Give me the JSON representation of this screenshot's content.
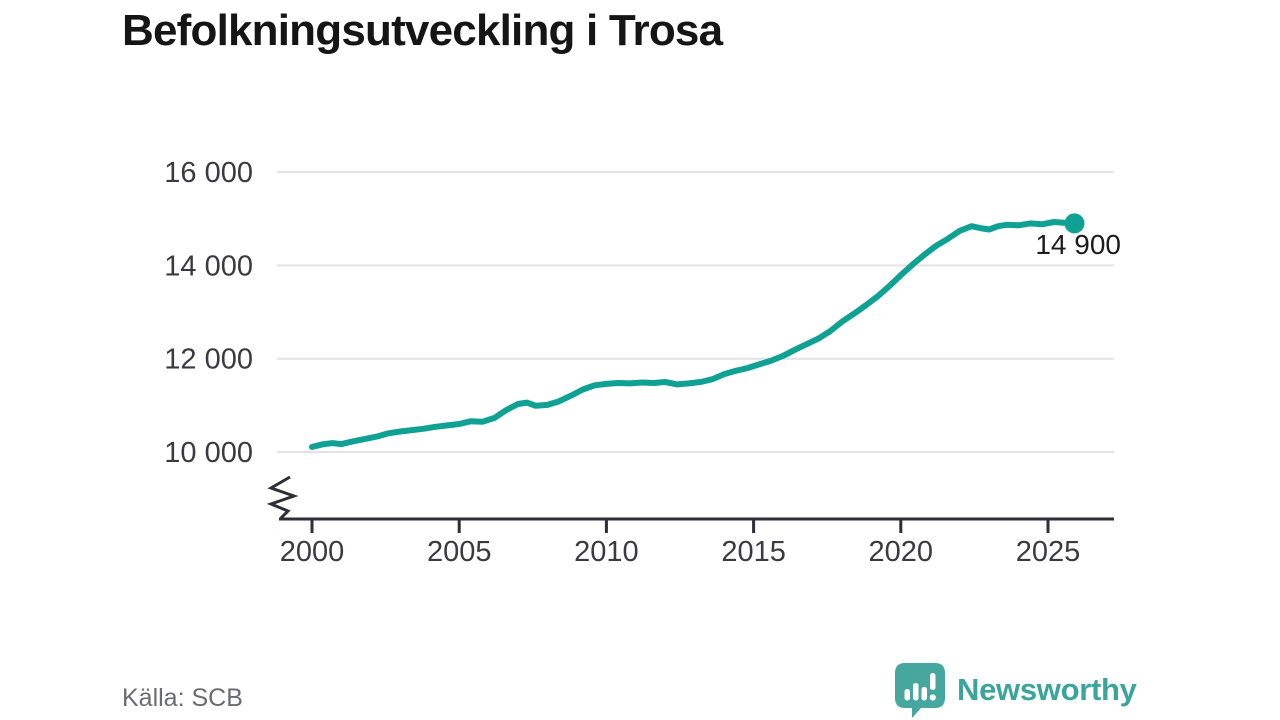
{
  "title": "Befolkningsutveckling i Trosa",
  "source": "Källa: SCB",
  "branding": {
    "logo_text": "Newsworthy",
    "logo_icon": "bar-chart-speech-bubble"
  },
  "colors": {
    "line": "#10a195",
    "grid": "#e3e3e3",
    "axis": "#2e2e36",
    "tick_label": "#3a3a42",
    "title": "#151515",
    "source": "#6b6b74",
    "logo": "#3ba49c",
    "logo_bubble": "#46a79f"
  },
  "chart_data": {
    "type": "line",
    "title": "Befolkningsutveckling i Trosa",
    "xlabel": "",
    "ylabel": "",
    "grid": "horizontal",
    "legend": "none",
    "axis_break": true,
    "xlim": [
      1999.1,
      2027.3
    ],
    "ylim": [
      10000,
      16000
    ],
    "x_ticks": [
      2000,
      2005,
      2010,
      2015,
      2020,
      2025
    ],
    "x_tick_labels": [
      "2000",
      "2005",
      "2010",
      "2015",
      "2020",
      "2025"
    ],
    "y_ticks": [
      10000,
      12000,
      14000,
      16000
    ],
    "y_tick_labels": [
      "10 000",
      "12 000",
      "14 000",
      "16 000"
    ],
    "series": [
      {
        "name": "Befolkning i Trosa",
        "x": [
          2000.0,
          2000.4,
          2000.7,
          2001.0,
          2001.4,
          2001.8,
          2002.2,
          2002.6,
          2003.0,
          2003.4,
          2003.8,
          2004.2,
          2004.6,
          2005.0,
          2005.4,
          2005.8,
          2006.2,
          2006.6,
          2007.0,
          2007.3,
          2007.6,
          2008.0,
          2008.4,
          2008.8,
          2009.2,
          2009.6,
          2010.0,
          2010.4,
          2010.8,
          2011.2,
          2011.6,
          2012.0,
          2012.4,
          2012.8,
          2013.2,
          2013.6,
          2014.0,
          2014.4,
          2014.8,
          2015.2,
          2015.6,
          2016.0,
          2016.4,
          2016.8,
          2017.2,
          2017.6,
          2018.0,
          2018.4,
          2018.8,
          2019.2,
          2019.6,
          2020.0,
          2020.4,
          2020.8,
          2021.2,
          2021.6,
          2022.0,
          2022.4,
          2022.7,
          2023.0,
          2023.3,
          2023.6,
          2024.0,
          2024.4,
          2024.8,
          2025.2,
          2025.6,
          2025.9
        ],
        "y": [
          10110,
          10170,
          10190,
          10170,
          10230,
          10280,
          10330,
          10400,
          10440,
          10470,
          10500,
          10540,
          10570,
          10600,
          10660,
          10650,
          10730,
          10900,
          11030,
          11060,
          10990,
          11010,
          11090,
          11210,
          11340,
          11430,
          11460,
          11480,
          11470,
          11490,
          11480,
          11500,
          11450,
          11470,
          11500,
          11560,
          11670,
          11740,
          11800,
          11880,
          11960,
          12060,
          12190,
          12310,
          12430,
          12590,
          12790,
          12960,
          13140,
          13330,
          13550,
          13790,
          14020,
          14230,
          14420,
          14570,
          14740,
          14840,
          14800,
          14770,
          14840,
          14870,
          14860,
          14900,
          14880,
          14930,
          14910,
          14900
        ]
      }
    ],
    "end_point": {
      "x": 2025.9,
      "y": 14900,
      "label": "14 900"
    }
  }
}
